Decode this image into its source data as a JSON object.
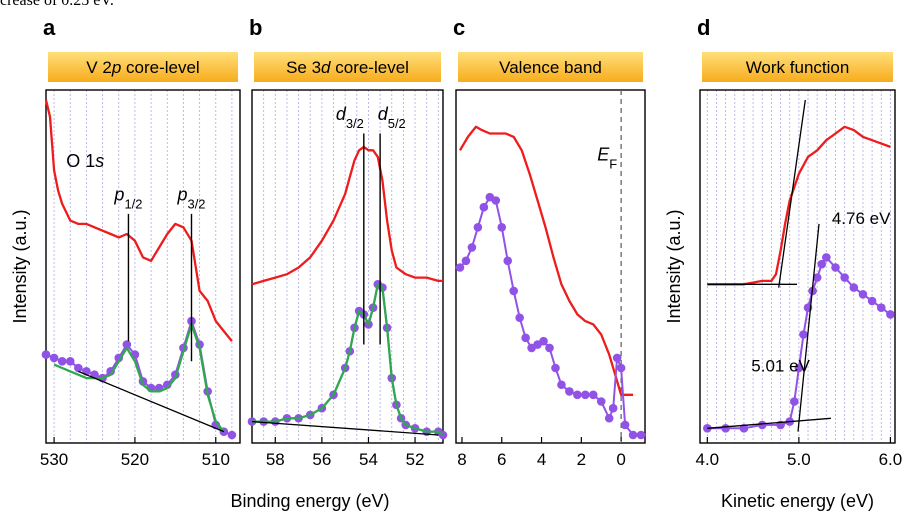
{
  "top_text": "crease of 0.25 eV.",
  "shared_xlabel": "Binding energy (eV)",
  "colors": {
    "header_fill_top": "#ffdf7a",
    "header_fill_bottom": "#f7ac1c",
    "red_series": "#ee1c1c",
    "purple_series": "#9152e6",
    "green_fit": "#2fa84f",
    "grid": "#b3b3ea"
  },
  "chart_data": [
    {
      "panel_letter": "a",
      "header": "V 2p core-level",
      "header_parts": [
        "V 2",
        "p",
        " core-level"
      ],
      "type": "line",
      "x_reversed": true,
      "xlim": [
        531,
        507
      ],
      "ylim": [
        0,
        1
      ],
      "xticks": [
        530,
        520,
        510
      ],
      "xtick_labels": [
        "530",
        "520",
        "510"
      ],
      "ylabel": "Intensity (a.u.)",
      "grid": true,
      "series": [
        {
          "role": "red-spectrum",
          "x": [
            531,
            530.5,
            530,
            529.5,
            529,
            528,
            527,
            526,
            525,
            524,
            523,
            522,
            521,
            520,
            519,
            518,
            517,
            516,
            515,
            514,
            513,
            512,
            511,
            510,
            509,
            508
          ],
          "y": [
            1.0,
            0.95,
            0.79,
            0.73,
            0.69,
            0.64,
            0.63,
            0.63,
            0.62,
            0.61,
            0.6,
            0.59,
            0.6,
            0.58,
            0.53,
            0.52,
            0.56,
            0.6,
            0.63,
            0.62,
            0.58,
            0.43,
            0.4,
            0.34,
            0.31,
            0.28
          ]
        },
        {
          "role": "purple-data",
          "x": [
            531,
            530,
            529,
            528,
            527,
            526,
            525,
            524,
            523,
            522,
            521,
            520,
            519,
            518,
            517,
            516,
            515,
            514,
            513,
            512,
            511,
            510,
            509,
            508
          ],
          "y": [
            0.24,
            0.23,
            0.22,
            0.22,
            0.2,
            0.19,
            0.18,
            0.17,
            0.19,
            0.23,
            0.27,
            0.24,
            0.16,
            0.14,
            0.14,
            0.15,
            0.18,
            0.26,
            0.34,
            0.27,
            0.13,
            0.03,
            0.01,
            0.0
          ]
        },
        {
          "role": "green-fit",
          "x": [
            530,
            529,
            528,
            527,
            526,
            525,
            524,
            523,
            522,
            521,
            520,
            519,
            518,
            517,
            516,
            515,
            514,
            513,
            512,
            511,
            510,
            509
          ],
          "y": [
            0.21,
            0.2,
            0.19,
            0.18,
            0.17,
            0.17,
            0.17,
            0.18,
            0.22,
            0.26,
            0.22,
            0.15,
            0.13,
            0.13,
            0.14,
            0.17,
            0.25,
            0.33,
            0.26,
            0.12,
            0.04,
            0.01
          ]
        },
        {
          "role": "background-line",
          "x": [
            527,
            509
          ],
          "y": [
            0.19,
            0.01
          ]
        }
      ],
      "annotations": [
        {
          "text_parts": [
            "O 1",
            "s"
          ],
          "x": 528.5,
          "y": 0.8
        },
        {
          "text_parts": [
            "p",
            "1/2"
          ],
          "x": 520.8,
          "y": 0.7,
          "marker_x": 520.8,
          "marker_y": [
            0.28,
            0.66
          ]
        },
        {
          "text_parts": [
            "p",
            "3/2"
          ],
          "x": 513.0,
          "y": 0.7,
          "marker_x": 513.0,
          "marker_y": [
            0.22,
            0.66
          ]
        }
      ]
    },
    {
      "panel_letter": "b",
      "header": "Se 3d core-level",
      "header_parts": [
        "Se 3",
        "d",
        " core-level"
      ],
      "type": "line",
      "x_reversed": true,
      "xlim": [
        59,
        50.8
      ],
      "ylim": [
        0,
        1
      ],
      "xticks": [
        58,
        56,
        54,
        52
      ],
      "xtick_labels": [
        "58",
        "56",
        "54",
        "52"
      ],
      "grid": true,
      "series": [
        {
          "role": "red-spectrum",
          "x": [
            59,
            58.5,
            58,
            57.5,
            57,
            56.5,
            56,
            55.5,
            55,
            54.8,
            54.6,
            54.4,
            54.2,
            54,
            53.8,
            53.6,
            53.4,
            53.2,
            53,
            52.8,
            52.6,
            52.4,
            52,
            51.5,
            51,
            50.8
          ],
          "y": [
            0.45,
            0.46,
            0.47,
            0.48,
            0.5,
            0.53,
            0.58,
            0.64,
            0.72,
            0.77,
            0.82,
            0.85,
            0.86,
            0.85,
            0.85,
            0.83,
            0.76,
            0.64,
            0.55,
            0.5,
            0.49,
            0.48,
            0.47,
            0.47,
            0.46,
            0.46
          ]
        },
        {
          "role": "purple-data",
          "x": [
            59,
            58.5,
            58,
            57.5,
            57,
            56.5,
            56,
            55.5,
            55,
            54.8,
            54.6,
            54.4,
            54.2,
            54,
            53.8,
            53.6,
            53.4,
            53.2,
            53,
            52.8,
            52.6,
            52.4,
            52,
            51.5,
            51,
            50.8
          ],
          "y": [
            0.04,
            0.04,
            0.04,
            0.05,
            0.05,
            0.06,
            0.08,
            0.12,
            0.2,
            0.25,
            0.32,
            0.37,
            0.36,
            0.33,
            0.38,
            0.45,
            0.44,
            0.32,
            0.17,
            0.09,
            0.05,
            0.03,
            0.02,
            0.01,
            0.01,
            0.0
          ]
        },
        {
          "role": "green-fit",
          "x": [
            59,
            58.5,
            58,
            57.5,
            57,
            56.5,
            56,
            55.5,
            55,
            54.8,
            54.6,
            54.4,
            54.2,
            54,
            53.8,
            53.6,
            53.4,
            53.2,
            53,
            52.8,
            52.6,
            52.4,
            52,
            51.5,
            51,
            50.8
          ],
          "y": [
            0.04,
            0.04,
            0.04,
            0.05,
            0.05,
            0.06,
            0.08,
            0.12,
            0.2,
            0.25,
            0.32,
            0.37,
            0.36,
            0.33,
            0.38,
            0.45,
            0.44,
            0.32,
            0.17,
            0.09,
            0.05,
            0.03,
            0.02,
            0.01,
            0.01,
            0.0
          ]
        },
        {
          "role": "background-line",
          "x": [
            59,
            51
          ],
          "y": [
            0.04,
            0.0
          ]
        }
      ],
      "annotations": [
        {
          "text_parts": [
            "d",
            "3/2"
          ],
          "x": 54.8,
          "y": 0.94,
          "marker_x": 54.2,
          "marker_y": [
            0.27,
            0.9
          ]
        },
        {
          "text_parts": [
            "d",
            "5/2"
          ],
          "x": 53.0,
          "y": 0.94,
          "marker_x": 53.5,
          "marker_y": [
            0.27,
            0.9
          ]
        }
      ]
    },
    {
      "panel_letter": "c",
      "header": "Valence band",
      "header_parts": [
        "Valence band"
      ],
      "type": "line",
      "x_reversed": true,
      "xlim": [
        8.3,
        -1.2
      ],
      "ylim": [
        0,
        1
      ],
      "xticks": [
        8,
        6,
        4,
        2,
        0
      ],
      "xtick_labels": [
        "8",
        "6",
        "4",
        "2",
        "0"
      ],
      "grid": false,
      "series": [
        {
          "role": "red-spectrum",
          "x": [
            8.1,
            7.7,
            7.3,
            7,
            6.6,
            6.2,
            5.8,
            5.4,
            5,
            4.6,
            4.2,
            3.8,
            3.4,
            3,
            2.6,
            2.2,
            1.8,
            1.4,
            1,
            0.6,
            0.3,
            0,
            -0.3,
            -0.6
          ],
          "y": [
            0.85,
            0.89,
            0.92,
            0.91,
            0.9,
            0.9,
            0.9,
            0.89,
            0.85,
            0.78,
            0.7,
            0.62,
            0.53,
            0.45,
            0.4,
            0.36,
            0.34,
            0.33,
            0.3,
            0.24,
            0.18,
            0.12,
            0.12,
            0.12
          ]
        },
        {
          "role": "purple-data",
          "x": [
            8.1,
            7.8,
            7.5,
            7.2,
            6.9,
            6.6,
            6.3,
            6,
            5.7,
            5.4,
            5.1,
            4.8,
            4.5,
            4.2,
            3.9,
            3.6,
            3.3,
            3,
            2.6,
            2.2,
            1.8,
            1.4,
            1,
            0.6,
            0.4,
            0.2,
            0,
            -0.2,
            -0.6,
            -1
          ],
          "y": [
            0.5,
            0.52,
            0.56,
            0.62,
            0.68,
            0.71,
            0.7,
            0.62,
            0.52,
            0.43,
            0.35,
            0.29,
            0.26,
            0.27,
            0.28,
            0.26,
            0.2,
            0.15,
            0.13,
            0.12,
            0.12,
            0.12,
            0.1,
            0.05,
            0.08,
            0.23,
            0.2,
            0.03,
            0.0,
            0.0
          ]
        }
      ],
      "annotations": [
        {
          "text_parts": [
            "E",
            "F"
          ],
          "x": 0.7,
          "y": 0.82
        },
        {
          "text": "",
          "dashed_x": 0
        }
      ]
    },
    {
      "panel_letter": "d",
      "header": "Work function",
      "header_parts": [
        "Work function"
      ],
      "type": "line",
      "x_reversed": false,
      "xlim": [
        3.92,
        6.05
      ],
      "ylim": [
        0,
        1
      ],
      "xticks": [
        4.0,
        5.0,
        6.0
      ],
      "xtick_labels": [
        "4.0",
        "5.0",
        "6.0"
      ],
      "xlabel": "Kinetic energy (eV)",
      "ylabel": "Intensity (a.u.)",
      "grid": true,
      "series": [
        {
          "role": "red-spectrum",
          "x": [
            4.0,
            4.2,
            4.4,
            4.6,
            4.7,
            4.75,
            4.8,
            4.85,
            4.9,
            5.0,
            5.1,
            5.2,
            5.3,
            5.4,
            5.5,
            5.6,
            5.7,
            5.8,
            5.9,
            6.0
          ],
          "y": [
            0.45,
            0.45,
            0.45,
            0.46,
            0.46,
            0.48,
            0.55,
            0.63,
            0.7,
            0.78,
            0.83,
            0.85,
            0.88,
            0.9,
            0.92,
            0.91,
            0.89,
            0.88,
            0.87,
            0.86
          ]
        },
        {
          "role": "purple-data",
          "x": [
            4.0,
            4.2,
            4.4,
            4.6,
            4.8,
            4.9,
            4.95,
            5.0,
            5.05,
            5.1,
            5.15,
            5.2,
            5.25,
            5.3,
            5.4,
            5.5,
            5.6,
            5.7,
            5.8,
            5.9,
            6.0
          ],
          "y": [
            0.02,
            0.02,
            0.02,
            0.03,
            0.03,
            0.04,
            0.1,
            0.2,
            0.3,
            0.38,
            0.43,
            0.47,
            0.51,
            0.53,
            0.5,
            0.47,
            0.44,
            0.42,
            0.4,
            0.38,
            0.36
          ]
        },
        {
          "role": "cutoff-fit-1",
          "x": [
            4.78,
            5.07
          ],
          "y": [
            0.44,
            1.0
          ]
        },
        {
          "role": "cutoff-fit-2",
          "x": [
            4.99,
            5.22
          ],
          "y": [
            0.01,
            0.63
          ]
        },
        {
          "role": "baseline-1",
          "x": [
            4.0,
            4.98
          ],
          "y": [
            0.45,
            0.45
          ]
        },
        {
          "role": "baseline-2",
          "x": [
            4.0,
            5.35
          ],
          "y": [
            0.02,
            0.05
          ]
        }
      ],
      "annotations": [
        {
          "text": "4.76 eV",
          "x": 5.36,
          "y": 0.63
        },
        {
          "text": "5.01 eV",
          "x": 4.48,
          "y": 0.19
        }
      ]
    }
  ]
}
